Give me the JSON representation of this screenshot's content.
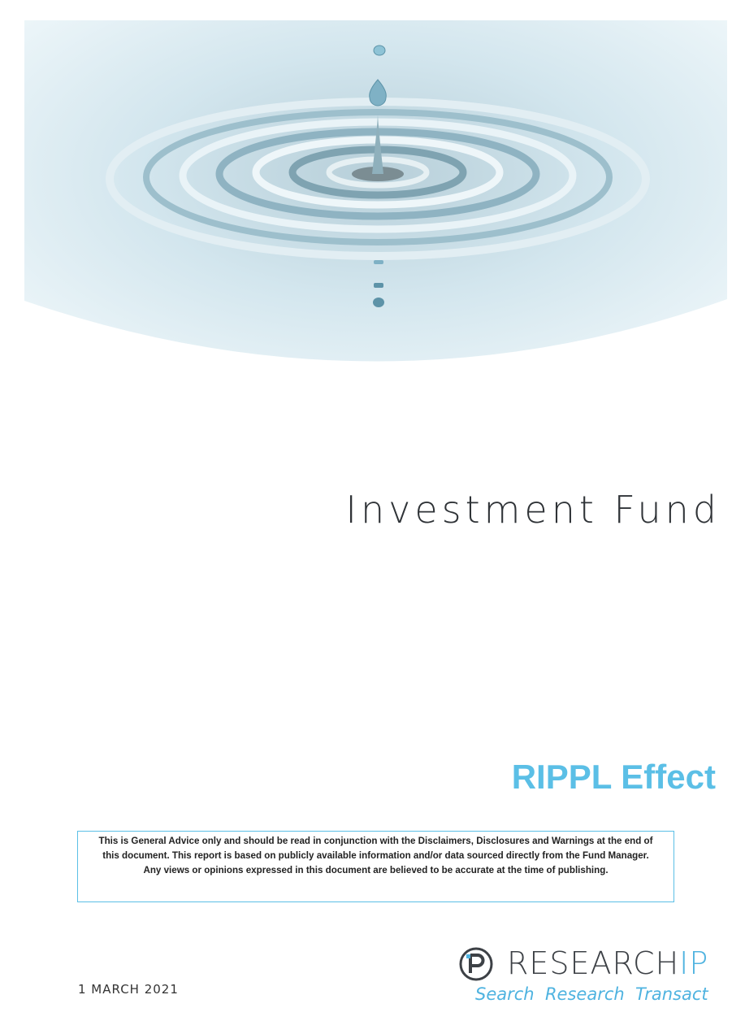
{
  "cover": {
    "title": "Investment Fund",
    "fund_name": "RIPPL Effect",
    "disclaimer": {
      "paragraph_1": "This is General Advice only and should be read in conjunction with the Disclaimers, Disclosures and Warnings at the end of this document. This report is based on publicly available information and/or data sourced directly from the Fund Manager.",
      "paragraph_2": "Any views or opinions expressed in this document are believed to be accurate at the time of publishing."
    },
    "date": "1 MARCH 2021",
    "logo": {
      "name_main": "RESEARCH",
      "name_accent": "IP",
      "tagline": "Search  Research  Transact"
    }
  }
}
